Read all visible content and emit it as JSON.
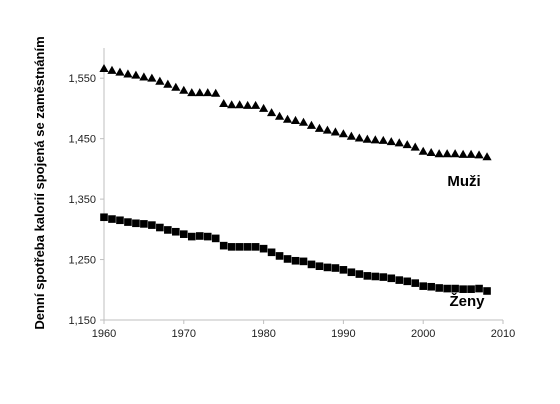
{
  "chart_data": {
    "type": "scatter",
    "ylabel": "Denní spotřeba kalorií spojená se zaměstnáním",
    "xlabel": "",
    "title": "",
    "xlim": [
      1960,
      2010
    ],
    "ylim": [
      1150,
      1600
    ],
    "x_ticks": [
      "1960",
      "1970",
      "1980",
      "1990",
      "2000",
      "2010"
    ],
    "y_ticks": [
      "1,150",
      "1,250",
      "1,350",
      "1,450",
      "1,550"
    ],
    "grid": false,
    "legend": "none",
    "series": [
      {
        "name": "Muži",
        "marker": "triangle",
        "color": "#000000",
        "x": [
          1960,
          1961,
          1962,
          1963,
          1964,
          1965,
          1966,
          1967,
          1968,
          1969,
          1970,
          1971,
          1972,
          1973,
          1974,
          1975,
          1976,
          1977,
          1978,
          1979,
          1980,
          1981,
          1982,
          1983,
          1984,
          1985,
          1986,
          1987,
          1988,
          1989,
          1990,
          1991,
          1992,
          1993,
          1994,
          1995,
          1996,
          1997,
          1998,
          1999,
          2000,
          2001,
          2002,
          2003,
          2004,
          2005,
          2006,
          2007,
          2008
        ],
        "y": [
          1566,
          1563,
          1560,
          1557,
          1555,
          1552,
          1550,
          1545,
          1540,
          1535,
          1530,
          1526,
          1526,
          1526,
          1525,
          1508,
          1506,
          1506,
          1505,
          1505,
          1500,
          1493,
          1487,
          1482,
          1480,
          1477,
          1472,
          1467,
          1464,
          1461,
          1458,
          1454,
          1451,
          1449,
          1448,
          1447,
          1445,
          1443,
          1440,
          1436,
          1429,
          1427,
          1425,
          1425,
          1425,
          1424,
          1424,
          1423,
          1420
        ]
      },
      {
        "name": "Ženy",
        "marker": "square",
        "color": "#000000",
        "x": [
          1960,
          1961,
          1962,
          1963,
          1964,
          1965,
          1966,
          1967,
          1968,
          1969,
          1970,
          1971,
          1972,
          1973,
          1974,
          1975,
          1976,
          1977,
          1978,
          1979,
          1980,
          1981,
          1982,
          1983,
          1984,
          1985,
          1986,
          1987,
          1988,
          1989,
          1990,
          1991,
          1992,
          1993,
          1994,
          1995,
          1996,
          1997,
          1998,
          1999,
          2000,
          2001,
          2002,
          2003,
          2004,
          2005,
          2006,
          2007,
          2008
        ],
        "y": [
          1320,
          1317,
          1315,
          1312,
          1310,
          1309,
          1307,
          1303,
          1299,
          1296,
          1292,
          1288,
          1289,
          1288,
          1285,
          1273,
          1271,
          1271,
          1271,
          1271,
          1268,
          1262,
          1256,
          1251,
          1248,
          1247,
          1242,
          1239,
          1237,
          1236,
          1233,
          1229,
          1226,
          1223,
          1222,
          1221,
          1219,
          1216,
          1214,
          1211,
          1206,
          1205,
          1203,
          1202,
          1202,
          1201,
          1201,
          1202,
          1198
        ]
      }
    ]
  }
}
